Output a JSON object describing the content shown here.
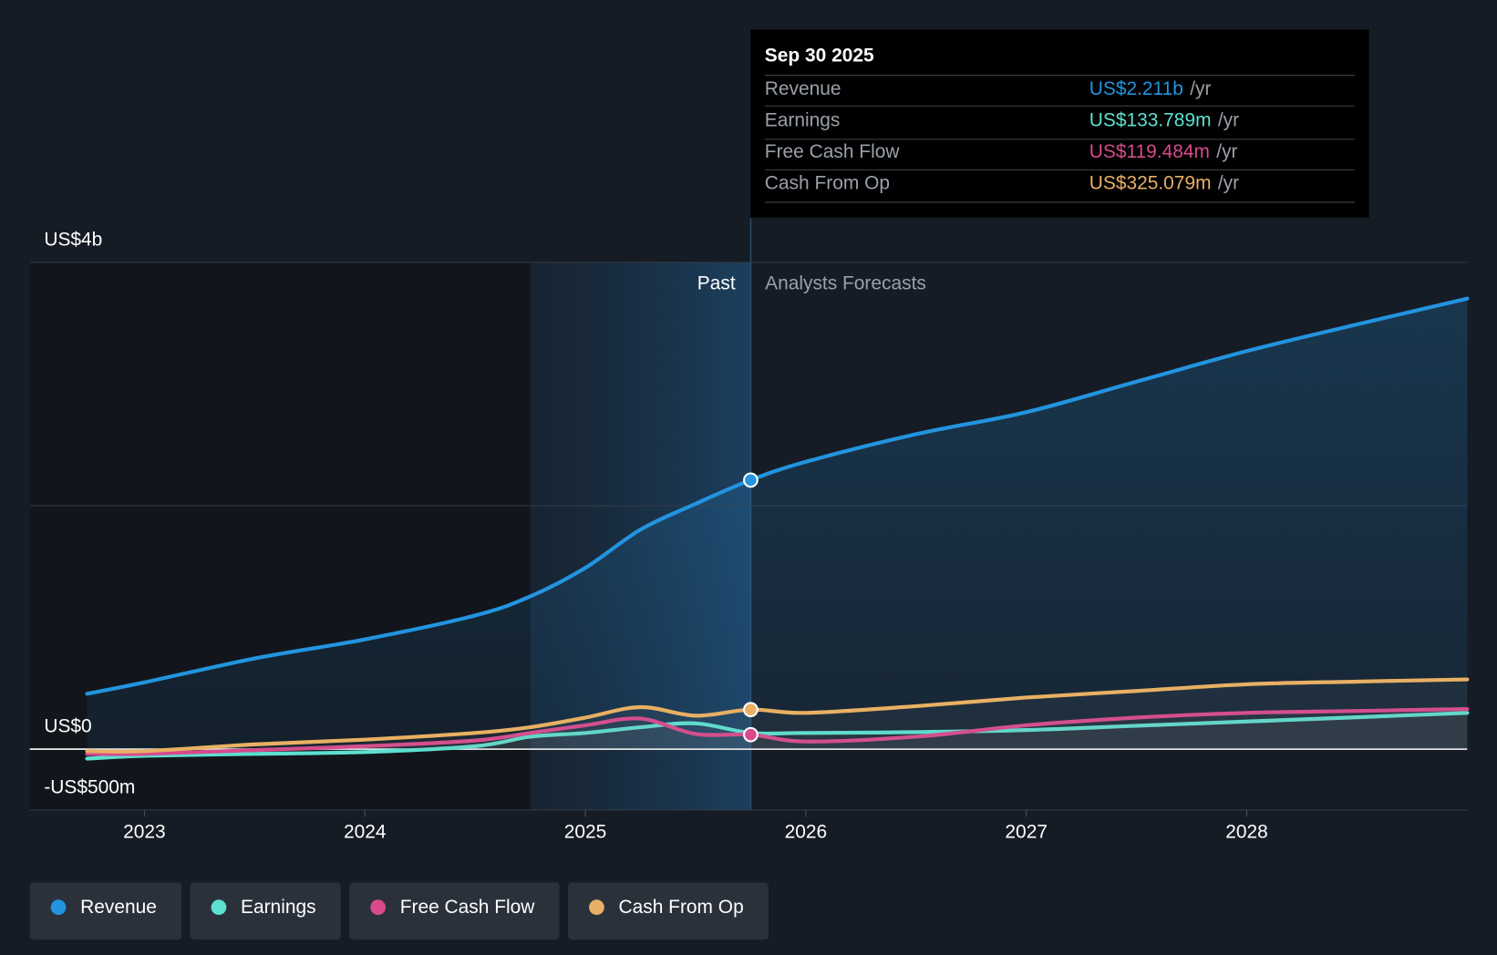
{
  "chart_data": {
    "type": "line",
    "x": [
      2022.74,
      2023.0,
      2023.5,
      2024.0,
      2024.5,
      2024.75,
      2025.0,
      2025.25,
      2025.5,
      2025.75,
      2026.0,
      2026.5,
      2027.0,
      2027.5,
      2028.0,
      2028.5,
      2029.0
    ],
    "xlim": [
      2022.48,
      2029.0
    ],
    "xticks": [
      2023,
      2024,
      2025,
      2026,
      2027,
      2028
    ],
    "ylim": [
      -500,
      4000
    ],
    "yticks": [
      {
        "value": -500,
        "label": "-US$500m"
      },
      {
        "value": 0,
        "label": "US$0"
      },
      {
        "value": 2000,
        "label": null
      },
      {
        "value": 4000,
        "label": "US$4b"
      }
    ],
    "highlight_start": 2024.75,
    "forecast_start": 2025.75,
    "past_label": "Past",
    "forecast_label": "Analysts Forecasts",
    "series": [
      {
        "name": "Revenue",
        "color": "#2394df",
        "values": [
          455,
          549,
          745,
          902,
          1098,
          1255,
          1490,
          1804,
          2016,
          2211,
          2361,
          2588,
          2769,
          3020,
          3271,
          3490,
          3702
        ]
      },
      {
        "name": "Earnings",
        "color": "#5ce0d0",
        "values": [
          -78,
          -55,
          -39,
          -24,
          24,
          102,
          133,
          180,
          212,
          134,
          133,
          140,
          157,
          192,
          227,
          262,
          298
        ]
      },
      {
        "name": "Free Cash Flow",
        "color": "#d84a8c",
        "values": [
          -39,
          -39,
          -8,
          24,
          71,
          133,
          196,
          251,
          125,
          119,
          63,
          102,
          196,
          259,
          298,
          314,
          329
        ]
      },
      {
        "name": "Cash From Op",
        "color": "#e8b064",
        "values": [
          -16,
          -16,
          39,
          78,
          133,
          180,
          259,
          345,
          275,
          325,
          298,
          353,
          424,
          478,
          533,
          555,
          573
        ]
      }
    ],
    "tooltip": {
      "title": "Sep 30 2025",
      "rows": [
        {
          "label": "Revenue",
          "value": "US$2.211b",
          "unit": "/yr"
        },
        {
          "label": "Earnings",
          "value": "US$133.789m",
          "unit": "/yr"
        },
        {
          "label": "Free Cash Flow",
          "value": "US$119.484m",
          "unit": "/yr"
        },
        {
          "label": "Cash From Op",
          "value": "US$325.079m",
          "unit": "/yr"
        }
      ]
    }
  }
}
